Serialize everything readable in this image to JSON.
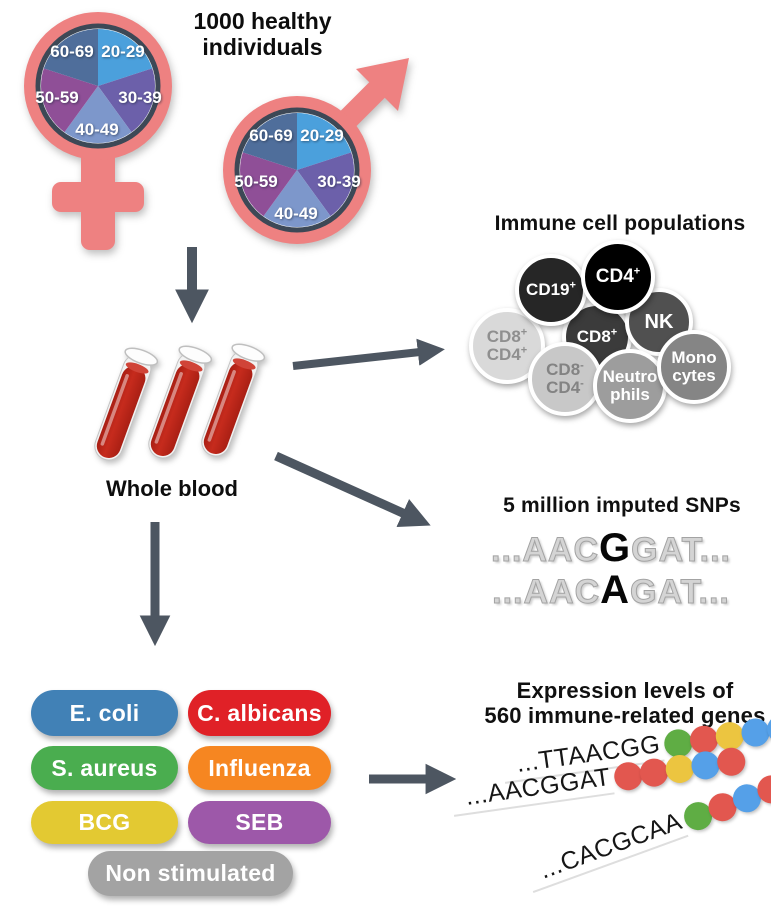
{
  "header": {
    "title": "1000 healthy individuals"
  },
  "demographics": {
    "age_groups": [
      "20-29",
      "30-39",
      "40-49",
      "50-59",
      "60-69"
    ],
    "symbols": [
      "female",
      "male"
    ],
    "slice_colors": {
      "20-29": "#4ba0dc",
      "30-39": "#6c60aa",
      "40-49": "#7d97cb",
      "50-59": "#8f4f97",
      "60-69": "#4f6e9b"
    },
    "symbol_color": "#ee8181"
  },
  "whole_blood": {
    "label": "Whole blood",
    "tube_count": 3,
    "blood_color": "#bf2318"
  },
  "immune_cells": {
    "title": "Immune cell populations",
    "cells": [
      {
        "name": "CD8+CD4+",
        "line1": "CD8",
        "line1_sup": "+",
        "line2": "CD4",
        "line2_sup": "+",
        "bg": "#d9d9d9",
        "fg": "#8f8f8f"
      },
      {
        "name": "CD8+",
        "line1": "CD8",
        "line1_sup": "+",
        "line2": "",
        "line2_sup": "",
        "bg": "#3b3b3b",
        "fg": "#ffffff"
      },
      {
        "name": "NK",
        "line1": "NK",
        "line1_sup": "",
        "line2": "",
        "line2_sup": "",
        "bg": "#505050",
        "fg": "#ffffff"
      },
      {
        "name": "CD19+",
        "line1": "CD19",
        "line1_sup": "+",
        "line2": "",
        "line2_sup": "",
        "bg": "#262626",
        "fg": "#ffffff"
      },
      {
        "name": "CD4+",
        "line1": "CD4",
        "line1_sup": "+",
        "line2": "",
        "line2_sup": "",
        "bg": "#000000",
        "fg": "#ffffff"
      },
      {
        "name": "CD8-CD4-",
        "line1": "CD8",
        "line1_sup": "-",
        "line2": "CD4",
        "line2_sup": "-",
        "bg": "#c8c8c8",
        "fg": "#838383"
      },
      {
        "name": "Neutrophils",
        "line1": "Neutro",
        "line1_sup": "",
        "line2": "phils",
        "line2_sup": "",
        "bg": "#9d9d9d",
        "fg": "#ffffff"
      },
      {
        "name": "Monocytes",
        "line1": "Mono",
        "line1_sup": "",
        "line2": "cytes",
        "line2_sup": "",
        "bg": "#858585",
        "fg": "#ffffff"
      }
    ]
  },
  "snps": {
    "title": "5 million imputed SNPs",
    "sequences": [
      {
        "pre": "...AAC",
        "snp": "G",
        "post": "GAT..."
      },
      {
        "pre": "...AAC",
        "snp": "A",
        "post": "GAT..."
      }
    ]
  },
  "stimulations": {
    "items": [
      {
        "label": "E. coli",
        "color": "#4181b6"
      },
      {
        "label": "C. albicans",
        "color": "#e02127"
      },
      {
        "label": "S. aureus",
        "color": "#4aad4f"
      },
      {
        "label": "Influenza",
        "color": "#f68621"
      },
      {
        "label": "BCG",
        "color": "#e3c932"
      },
      {
        "label": "SEB",
        "color": "#9d58a9"
      },
      {
        "label": "Non stimulated",
        "color": "#a3a3a3"
      }
    ]
  },
  "expression": {
    "title_line1": "Expression levels of",
    "title_line2": "560 immune-related genes",
    "rows": [
      {
        "sequence": "...TTAACGG",
        "dots": [
          "green",
          "red",
          "yellow",
          "blue",
          "blue"
        ]
      },
      {
        "sequence": "...AACGGAT",
        "dots": [
          "red",
          "red",
          "yellow",
          "blue",
          "red"
        ]
      },
      {
        "sequence": "...CACGCAA",
        "dots": [
          "green",
          "red",
          "blue",
          "red",
          "red"
        ]
      }
    ],
    "dot_colors": {
      "green": "#5fad44",
      "red": "#e2574f",
      "yellow": "#ecc540",
      "blue": "#55a0e8"
    }
  },
  "colors": {
    "arrow": "#4d5661",
    "pie_border": "#3d4856"
  }
}
